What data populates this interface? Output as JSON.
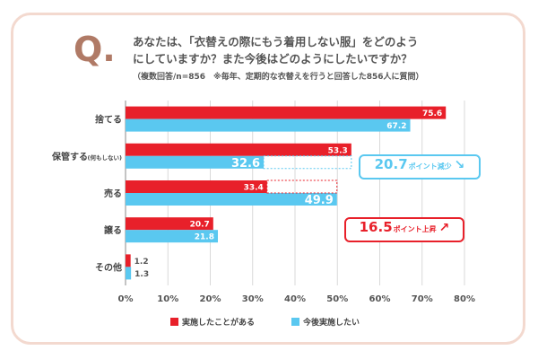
{
  "question": {
    "mark": "Q.",
    "line1": "あなたは、「衣替えの際にもう着用しない服」をどのよう",
    "line2": "にしていますか？また今後はどのようにしたいですか？",
    "note": "（複数回答/n=856　※毎年、定期的な衣替えを行うと回答した856人に質問）"
  },
  "colors": {
    "series1": "#e8202a",
    "series2": "#5ac8f0",
    "callout_down": "#5ac8f0",
    "callout_up": "#e8202a"
  },
  "chart_data": {
    "type": "bar",
    "orientation": "horizontal",
    "categories": [
      "捨てる",
      "保管する",
      "売る",
      "譲る",
      "その他"
    ],
    "category_sub": [
      "",
      "(何もしない)",
      "",
      "",
      ""
    ],
    "series": [
      {
        "name": "実施したことがある",
        "values": [
          75.6,
          53.3,
          33.4,
          20.7,
          1.2
        ]
      },
      {
        "name": "今後実施したい",
        "values": [
          67.2,
          32.6,
          49.9,
          21.8,
          1.3
        ]
      }
    ],
    "xlim": [
      0,
      80
    ],
    "xticks": [
      "0%",
      "10%",
      "20%",
      "30%",
      "40%",
      "50%",
      "60%",
      "70%",
      "80%"
    ],
    "grid": true,
    "legend_position": "bottom"
  },
  "callouts": {
    "down": {
      "value": "20.7",
      "unit": "ポイント減少",
      "arrow": "↘"
    },
    "up": {
      "value": "16.5",
      "unit": "ポイント上昇",
      "arrow": "↗"
    }
  },
  "legend": {
    "item1": "実施したことがある",
    "item2": "今後実施したい"
  }
}
